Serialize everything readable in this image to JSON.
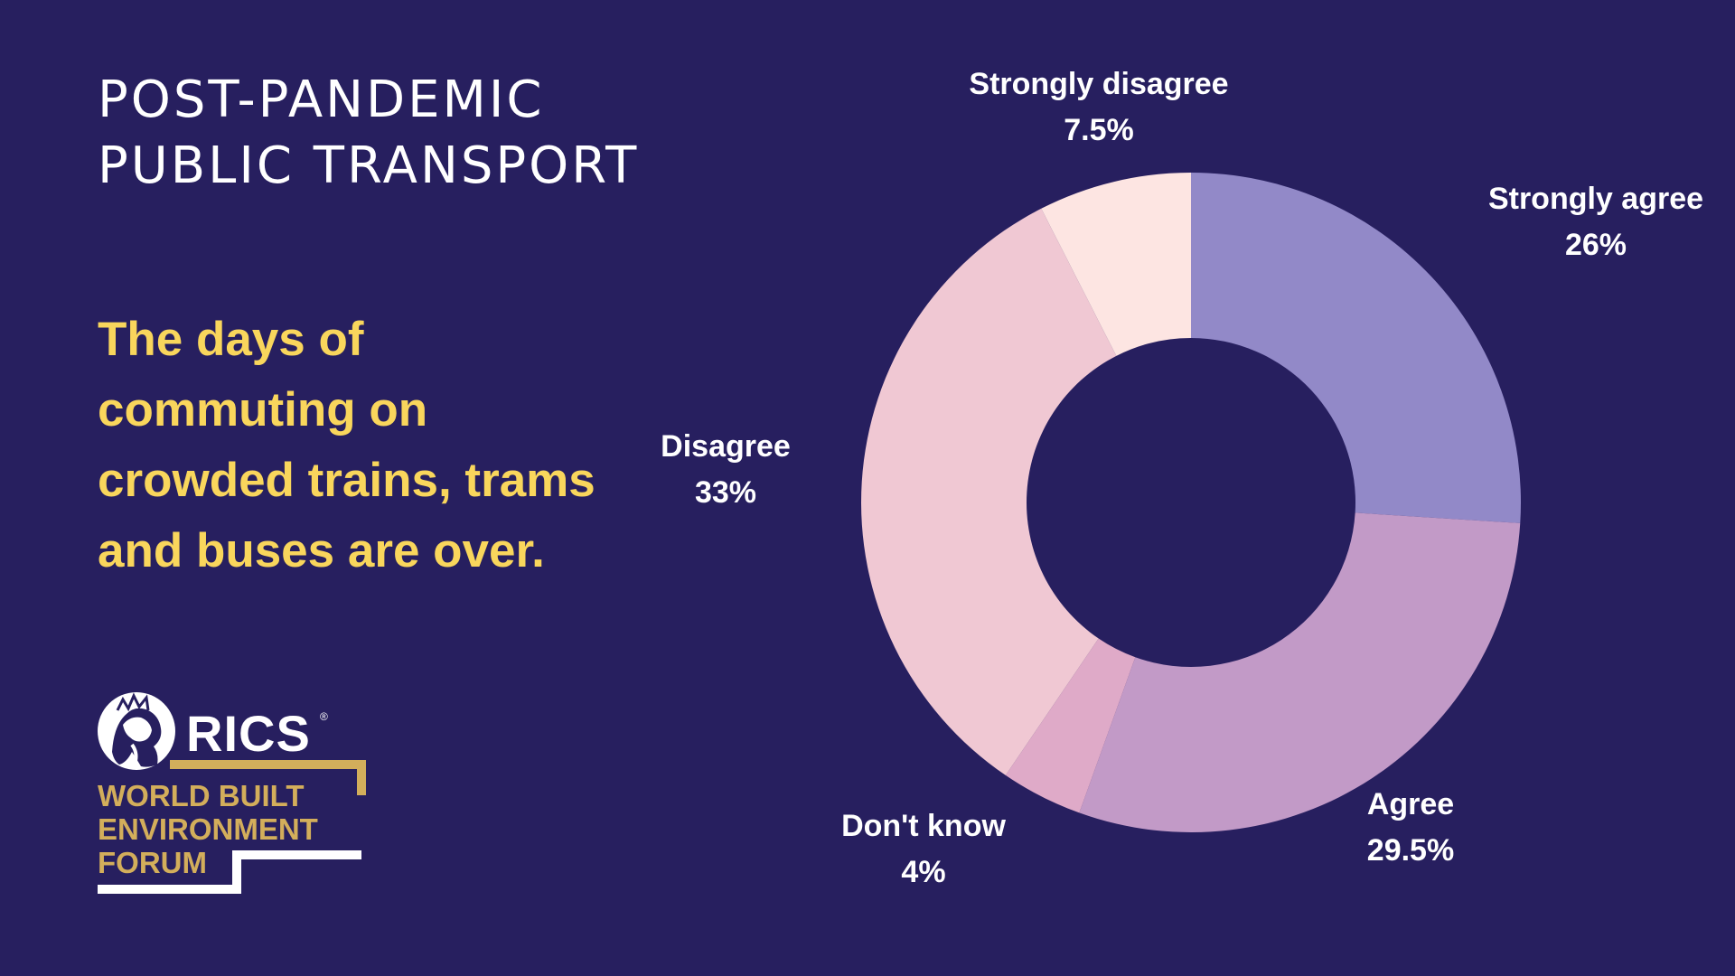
{
  "heading": {
    "line1": "POST-PANDEMIC",
    "line2": "PUBLIC TRANSPORT"
  },
  "statement": {
    "line1": "The days of",
    "line2": "commuting on",
    "line3": "crowded trains, trams",
    "line4": "and buses are over."
  },
  "logo": {
    "wordmark": "RICS",
    "registered": "®",
    "forum_line1": "WORLD BUILT",
    "forum_line2": "ENVIRONMENT",
    "forum_line3": "FORUM",
    "gold_color": "#d3ae5b",
    "icon": "lion-icon"
  },
  "colors": {
    "background": "#271f5f",
    "statement_text": "#f9d65c"
  },
  "chart_data": {
    "type": "pie",
    "donut": true,
    "start": "12 o'clock",
    "direction": "clockwise",
    "slices": [
      {
        "label": "Strongly agree",
        "value": 26,
        "value_label": "26%",
        "color": "#9289c8"
      },
      {
        "label": "Agree",
        "value": 29.5,
        "value_label": "29.5%",
        "color": "#c29ac7"
      },
      {
        "label": "Don't know",
        "value": 4,
        "value_label": "4%",
        "color": "#dfaac8"
      },
      {
        "label": "Disagree",
        "value": 33,
        "value_label": "33%",
        "color": "#f0c8d3"
      },
      {
        "label": "Strongly disagree",
        "value": 7.5,
        "value_label": "7.5%",
        "color": "#fde5e2"
      }
    ]
  }
}
